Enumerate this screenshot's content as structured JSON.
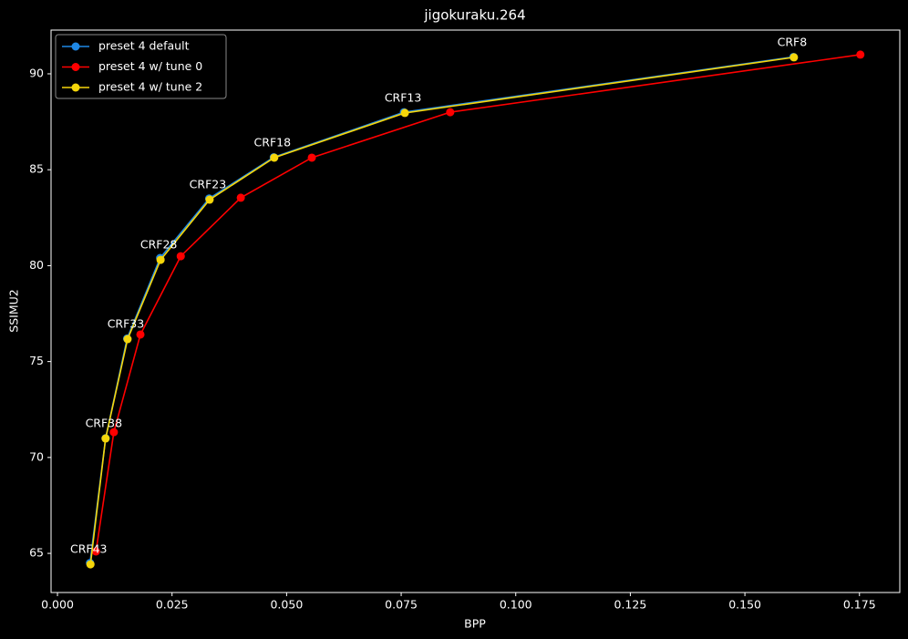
{
  "chart_data": {
    "type": "line",
    "title": "jigokuraku.264",
    "x_label": "BPP",
    "y_label": "SSIMU2",
    "xlim": [
      -0.0014,
      0.1838
    ],
    "ylim": [
      62.96,
      92.28
    ],
    "xticks": [
      {
        "value": 0,
        "label": "0.000"
      },
      {
        "value": 0.025,
        "label": "0.025"
      },
      {
        "value": 0.05,
        "label": "0.050"
      },
      {
        "value": 0.075,
        "label": "0.075"
      },
      {
        "value": 0.1,
        "label": "0.100"
      },
      {
        "value": 0.125,
        "label": "0.125"
      },
      {
        "value": 0.15,
        "label": "0.150"
      },
      {
        "value": 0.175,
        "label": "0.175"
      }
    ],
    "yticks": [
      65,
      70,
      75,
      80,
      85,
      90
    ],
    "legend": "upper left",
    "series": [
      {
        "name": "preset 4 default",
        "color": "#1f88e5",
        "x": [
          0.0071,
          0.0105,
          0.0152,
          0.0224,
          0.0331,
          0.0472,
          0.0756,
          0.1606
        ],
        "values": [
          64.5,
          71.0,
          76.2,
          80.4,
          83.5,
          85.65,
          88.0,
          90.88
        ]
      },
      {
        "name": "preset 4 w/ tune 0",
        "color": "#ff0000",
        "x": [
          0.0084,
          0.0123,
          0.0181,
          0.0269,
          0.04,
          0.0555,
          0.0857,
          0.1752
        ],
        "values": [
          65.1,
          71.32,
          76.41,
          80.49,
          83.54,
          85.63,
          88.0,
          91.0
        ]
      },
      {
        "name": "preset 4 w/ tune 2",
        "color": "#f5d60a",
        "x": [
          0.0072,
          0.0105,
          0.0153,
          0.0225,
          0.0332,
          0.0473,
          0.0758,
          0.1607
        ],
        "values": [
          64.43,
          70.99,
          76.17,
          80.3,
          83.44,
          85.63,
          87.96,
          90.86
        ]
      }
    ],
    "annotations": [
      "CRF43",
      "CRF38",
      "CRF33",
      "CRF28",
      "CRF23",
      "CRF18",
      "CRF13",
      "CRF8"
    ]
  }
}
